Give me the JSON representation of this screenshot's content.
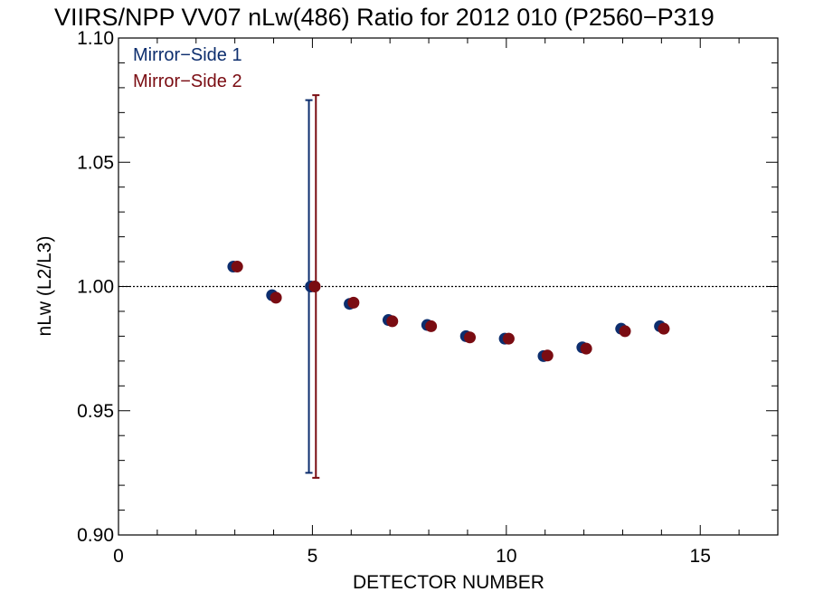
{
  "chart_data": {
    "type": "scatter",
    "title": "VIIRS/NPP VV07 nLw(486) Ratio for 2012 010 (P2560−P319",
    "xlabel": "DETECTOR NUMBER",
    "ylabel": "nLw (L2/L3)",
    "xlim": [
      0,
      17
    ],
    "ylim": [
      0.9,
      1.1
    ],
    "x_ticks": [
      0,
      5,
      10,
      15
    ],
    "x_tick_labels": [
      "0",
      "5",
      "10",
      "15"
    ],
    "y_ticks": [
      0.9,
      0.95,
      1.0,
      1.05,
      1.1
    ],
    "y_tick_labels": [
      "0.90",
      "0.95",
      "1.00",
      "1.05",
      "1.10"
    ],
    "reference_line": 1.0,
    "grid": false,
    "legend_position": "top-left",
    "series": [
      {
        "name": "Mirror−Side 1",
        "color": "#0d2e6e",
        "x": [
          3,
          4,
          5,
          6,
          7,
          8,
          9,
          10,
          11,
          12,
          13,
          14
        ],
        "y": [
          1.008,
          0.9965,
          1.0,
          0.993,
          0.9865,
          0.9845,
          0.98,
          0.979,
          0.972,
          0.9755,
          0.983,
          0.984
        ],
        "error_bars": [
          {
            "x": 5,
            "low": 0.925,
            "high": 1.075
          }
        ]
      },
      {
        "name": "Mirror−Side 2",
        "color": "#7a0c12",
        "x": [
          3,
          4,
          5,
          6,
          7,
          8,
          9,
          10,
          11,
          12,
          13,
          14
        ],
        "y": [
          1.008,
          0.9955,
          1.0,
          0.9935,
          0.986,
          0.984,
          0.9795,
          0.979,
          0.9722,
          0.975,
          0.982,
          0.983
        ],
        "error_bars": [
          {
            "x": 5,
            "low": 0.923,
            "high": 1.077
          }
        ]
      }
    ]
  }
}
